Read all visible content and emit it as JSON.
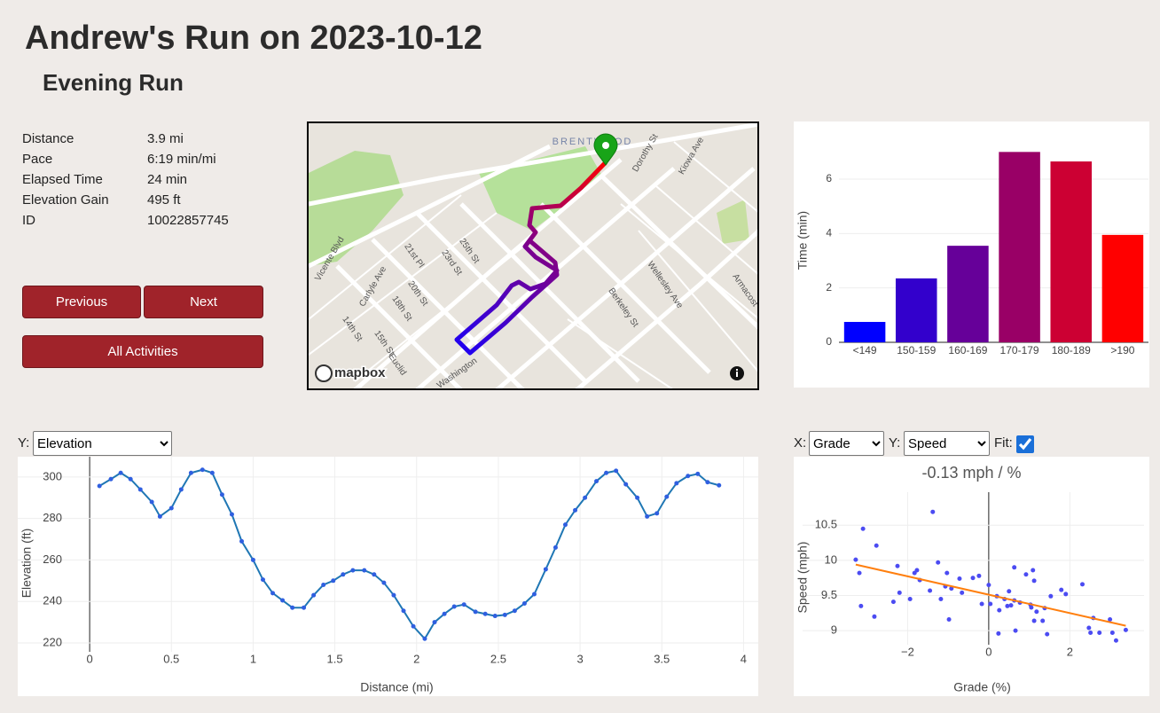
{
  "header": {
    "title": "Andrew's Run on 2023-10-12",
    "subtitle": "Evening Run"
  },
  "stats": [
    {
      "label": "Distance",
      "value": "3.9 mi"
    },
    {
      "label": "Pace",
      "value": "6:19 min/mi"
    },
    {
      "label": "Elapsed Time",
      "value": "24 min"
    },
    {
      "label": "Elevation Gain",
      "value": "495 ft"
    },
    {
      "label": "ID",
      "value": "10022857745"
    }
  ],
  "buttons": {
    "previous": "Previous",
    "next": "Next",
    "all": "All Activities"
  },
  "controls": {
    "elevation_y": {
      "label": "Y:",
      "value": "Elevation"
    },
    "scatter_x": {
      "label": "X:",
      "value": "Grade"
    },
    "scatter_y": {
      "label": "Y:",
      "value": "Speed"
    },
    "fit": {
      "label": "Fit:",
      "checked": true
    }
  },
  "map": {
    "labels": [
      "BRENTWOOD",
      "Dorothy St",
      "Kiowa Ave",
      "Wellesley Ave",
      "Berkeley St",
      "Armacost",
      "25th St",
      "23rd St",
      "21st Pl",
      "20th St",
      "18th St",
      "Carlyle Ave",
      "14th St",
      "15th St",
      "Euclid",
      "Vicente Blvd",
      "Washington"
    ],
    "attribution": "mapbox"
  },
  "chart_data": [
    {
      "type": "bar",
      "y_label": "Time (min)",
      "categories": [
        "<149",
        "150-159",
        "160-169",
        "170-179",
        "180-189",
        ">190"
      ],
      "values": [
        0.75,
        2.35,
        3.55,
        7.0,
        6.65,
        3.95
      ],
      "colors": [
        "#0000ff",
        "#3300cc",
        "#660099",
        "#990066",
        "#cc0033",
        "#ff0000"
      ],
      "ylim": [
        0,
        7.5
      ],
      "yticks": [
        0,
        2,
        4,
        6
      ],
      "grid": true
    },
    {
      "type": "line",
      "x_label": "Distance (mi)",
      "y_label": "Elevation (ft)",
      "color": "#1f77b4",
      "marker_color": "#2f5fe0",
      "x": [
        0.06,
        0.13,
        0.19,
        0.25,
        0.31,
        0.38,
        0.43,
        0.5,
        0.56,
        0.62,
        0.69,
        0.75,
        0.81,
        0.87,
        0.93,
        1.0,
        1.06,
        1.12,
        1.18,
        1.24,
        1.31,
        1.37,
        1.43,
        1.49,
        1.55,
        1.61,
        1.68,
        1.74,
        1.8,
        1.86,
        1.92,
        1.98,
        2.05,
        2.11,
        2.17,
        2.23,
        2.29,
        2.36,
        2.42,
        2.48,
        2.54,
        2.6,
        2.66,
        2.72,
        2.79,
        2.85,
        2.91,
        2.97,
        3.03,
        3.1,
        3.16,
        3.22,
        3.28,
        3.35,
        3.41,
        3.47,
        3.53,
        3.59,
        3.66,
        3.72,
        3.78,
        3.85
      ],
      "values": [
        295.7,
        299,
        302,
        299,
        294,
        288,
        281,
        285,
        294,
        302,
        303.5,
        302,
        291.5,
        282,
        269,
        260,
        250.5,
        244,
        240.5,
        237,
        237,
        243,
        248,
        250,
        253,
        255,
        255,
        253,
        249,
        243,
        235.5,
        228,
        222,
        230,
        234,
        237.5,
        238.5,
        235,
        234,
        233,
        233.5,
        235.5,
        239,
        243.5,
        255.5,
        266,
        277,
        284,
        290,
        298,
        302,
        303,
        296.5,
        290,
        281,
        282.5,
        290.5,
        297,
        300.5,
        301.5,
        297.5,
        296
      ],
      "xlim": [
        -0.44,
        4.09
      ],
      "ylim": [
        215.7,
        309.8
      ],
      "xticks": [
        0,
        0.5,
        1,
        1.5,
        2,
        2.5,
        3,
        3.5,
        4
      ],
      "yticks": [
        220,
        240,
        260,
        280,
        300
      ],
      "grid": true
    },
    {
      "type": "scatter",
      "title": "-0.13 mph / %",
      "x_label": "Grade (%)",
      "y_label": "Speed (mph)",
      "color": "#4b4bf2",
      "x": [
        -3.28,
        -3.19,
        -3.1,
        -3.15,
        -2.82,
        -2.77,
        -2.35,
        -2.25,
        -2.2,
        -1.83,
        -1.77,
        -1.7,
        -1.94,
        -1.45,
        -1.38,
        -1.25,
        -1.18,
        -1.07,
        -1.03,
        -0.98,
        -0.92,
        -0.72,
        -0.66,
        -0.39,
        -0.24,
        -0.17,
        0.0,
        0.04,
        0.2,
        0.24,
        0.26,
        0.39,
        0.46,
        0.5,
        0.55,
        0.63,
        0.66,
        0.63,
        0.77,
        0.92,
        1.03,
        1.05,
        1.09,
        1.12,
        1.12,
        1.18,
        1.33,
        1.38,
        1.44,
        1.53,
        1.79,
        1.9,
        2.31,
        2.47,
        2.51,
        2.58,
        2.73,
        2.99,
        3.05,
        3.14,
        3.38
      ],
      "values": [
        10.01,
        9.82,
        10.45,
        9.35,
        9.2,
        10.21,
        9.41,
        9.92,
        9.54,
        9.82,
        9.86,
        9.72,
        9.45,
        9.57,
        10.69,
        9.97,
        9.45,
        9.63,
        9.82,
        9.16,
        9.6,
        9.74,
        9.54,
        9.75,
        9.78,
        9.38,
        9.65,
        9.38,
        9.49,
        8.96,
        9.29,
        9.45,
        9.35,
        9.56,
        9.36,
        9.9,
        9.0,
        9.43,
        9.4,
        9.8,
        9.37,
        9.33,
        9.86,
        9.71,
        9.14,
        9.27,
        9.14,
        9.32,
        8.95,
        9.49,
        9.58,
        9.52,
        9.66,
        9.04,
        8.97,
        9.18,
        8.97,
        9.16,
        8.97,
        8.86,
        9.01
      ],
      "fit": {
        "x": [
          -3.28,
          3.38
        ],
        "y": [
          9.94,
          9.07
        ],
        "color": "#ff7f0e"
      },
      "xlim": [
        -4.59,
        3.83
      ],
      "ylim": [
        8.8,
        10.97
      ],
      "xticks": [
        {
          "value": -2,
          "label": "−2"
        },
        0,
        2
      ],
      "yticks": [
        9,
        9.5,
        10,
        10.5
      ],
      "grid": true
    }
  ]
}
